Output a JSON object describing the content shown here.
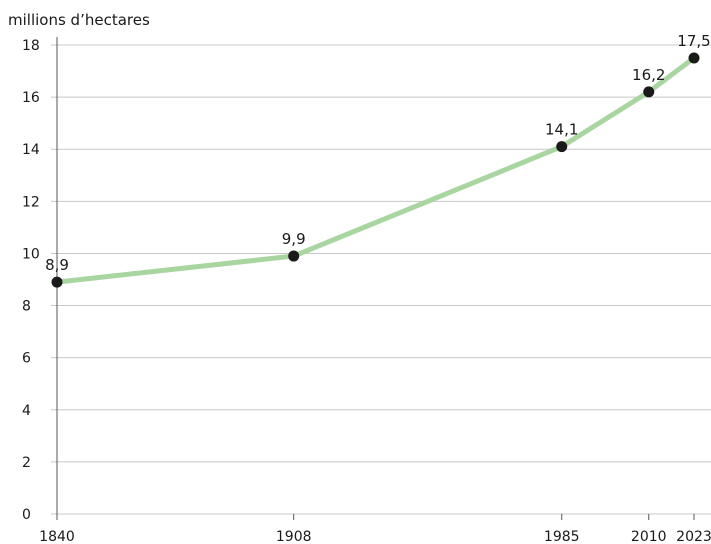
{
  "chart_data": {
    "type": "line",
    "ylabel": "millions d’hectares",
    "xlabel": "",
    "x": [
      1840,
      1908,
      1985,
      2010,
      2023
    ],
    "x_tick_labels": [
      "1840",
      "1908",
      "1985",
      "2010",
      "2023"
    ],
    "values": [
      8.9,
      9.9,
      14.1,
      16.2,
      17.5
    ],
    "data_labels": [
      "8,9",
      "9,9",
      "14,1",
      "16,2",
      "17,5"
    ],
    "ylim": [
      0,
      18
    ],
    "y_ticks": [
      0,
      2,
      4,
      6,
      8,
      10,
      12,
      14,
      16,
      18
    ],
    "y_tick_labels": [
      "0",
      "2",
      "4",
      "6",
      "8",
      "10",
      "12",
      "14",
      "16",
      "18"
    ],
    "grid": "horizontal",
    "line_color": "#a8d5a0",
    "marker_color": "#1a1a1a"
  }
}
